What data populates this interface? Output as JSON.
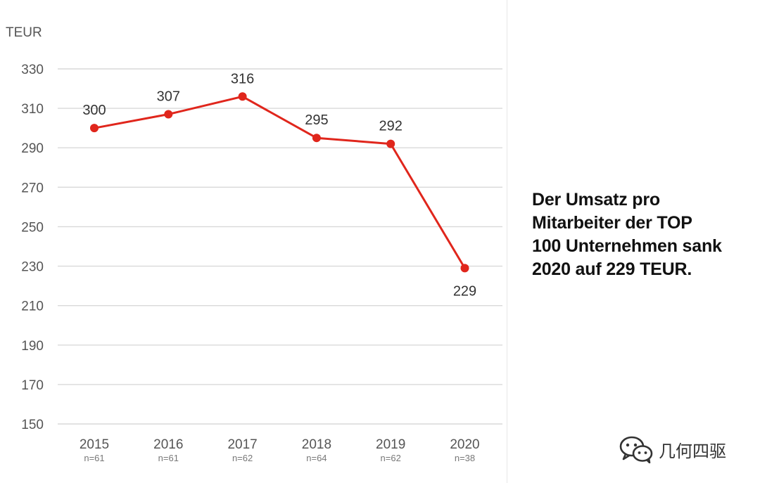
{
  "chart_data": {
    "type": "line",
    "unit_label": "TEUR",
    "categories": [
      "2015",
      "2016",
      "2017",
      "2018",
      "2019",
      "2020"
    ],
    "sample_sizes": [
      "n=61",
      "n=61",
      "n=62",
      "n=64",
      "n=62",
      "n=38"
    ],
    "values": [
      300,
      307,
      316,
      295,
      292,
      229
    ],
    "data_labels": [
      "300",
      "307",
      "316",
      "295",
      "292",
      "229"
    ],
    "label_positions": [
      "above",
      "above",
      "above",
      "above",
      "above",
      "below"
    ],
    "ylim": [
      150,
      330
    ],
    "yticks": [
      150,
      170,
      190,
      210,
      230,
      250,
      270,
      290,
      310,
      330
    ],
    "grid": true,
    "line_color": "#e0261c",
    "grid_color": "#d9d9d9",
    "title": "",
    "xlabel": "",
    "ylabel": ""
  },
  "callout": {
    "text": "Der Umsatz pro\nMitarbeiter der TOP\n100 Unternehmen sank\n2020 auf 229 TEUR."
  },
  "watermark": {
    "text": "几何四驱",
    "icon": "wechat-icon"
  }
}
